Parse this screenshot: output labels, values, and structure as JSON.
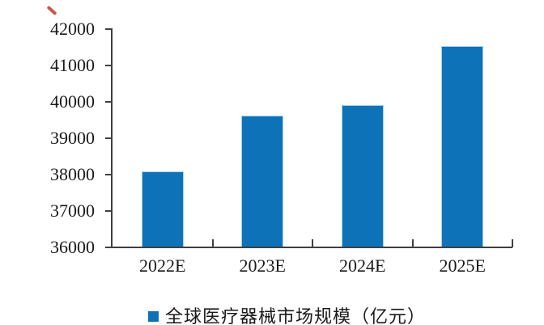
{
  "page": {
    "background_color": "#ffffff",
    "decoration": {
      "red_ink_mark": "small red diagonal pen stroke, top-left corner",
      "red_ink_color": "#c13a2e"
    }
  },
  "chart_data": {
    "type": "bar",
    "title": "",
    "xlabel": "",
    "ylabel": "",
    "categories": [
      "2022E",
      "2023E",
      "2024E",
      "2025E"
    ],
    "values": [
      38070,
      39600,
      39890,
      41510
    ],
    "series": [
      {
        "name": "全球医疗器械市场规模（亿元）",
        "values": [
          38070,
          39600,
          39890,
          41510
        ]
      }
    ],
    "ylim": [
      36000,
      42000
    ],
    "yticks": [
      36000,
      37000,
      38000,
      39000,
      40000,
      41000,
      42000
    ],
    "grid": false,
    "legend_position": "bottom",
    "legend_label": "全球医疗器械市场规模（亿元）",
    "bar_color": "#0e72b9",
    "bar_edge_color": "#a6d3ee",
    "axis_color": "#3f3f3f",
    "text_color": "#1a1a1a"
  }
}
